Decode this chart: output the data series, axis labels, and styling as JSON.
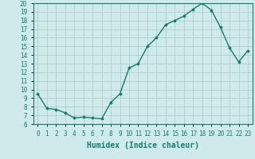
{
  "x": [
    0,
    1,
    2,
    3,
    4,
    5,
    6,
    7,
    8,
    9,
    10,
    11,
    12,
    13,
    14,
    15,
    16,
    17,
    18,
    19,
    20,
    21,
    22,
    23
  ],
  "y": [
    9.5,
    7.8,
    7.7,
    7.3,
    6.7,
    6.8,
    6.7,
    6.6,
    8.5,
    9.5,
    12.5,
    13.0,
    15.0,
    16.0,
    17.5,
    18.0,
    18.5,
    19.3,
    20.0,
    19.2,
    17.2,
    14.8,
    13.2,
    14.5
  ],
  "line_color": "#1a7a6e",
  "marker": "D",
  "marker_size": 1.5,
  "bg_color": "#ceeaea",
  "grid_color": "#b0cccc",
  "xlabel": "Humidex (Indice chaleur)",
  "xlim": [
    -0.5,
    23.5
  ],
  "ylim": [
    6,
    20
  ],
  "yticks": [
    6,
    7,
    8,
    9,
    10,
    11,
    12,
    13,
    14,
    15,
    16,
    17,
    18,
    19,
    20
  ],
  "xticks": [
    0,
    1,
    2,
    3,
    4,
    5,
    6,
    7,
    8,
    9,
    10,
    11,
    12,
    13,
    14,
    15,
    16,
    17,
    18,
    19,
    20,
    21,
    22,
    23
  ],
  "tick_labelsize": 5.5,
  "xlabel_fontsize": 7.0,
  "line_width": 1.0
}
